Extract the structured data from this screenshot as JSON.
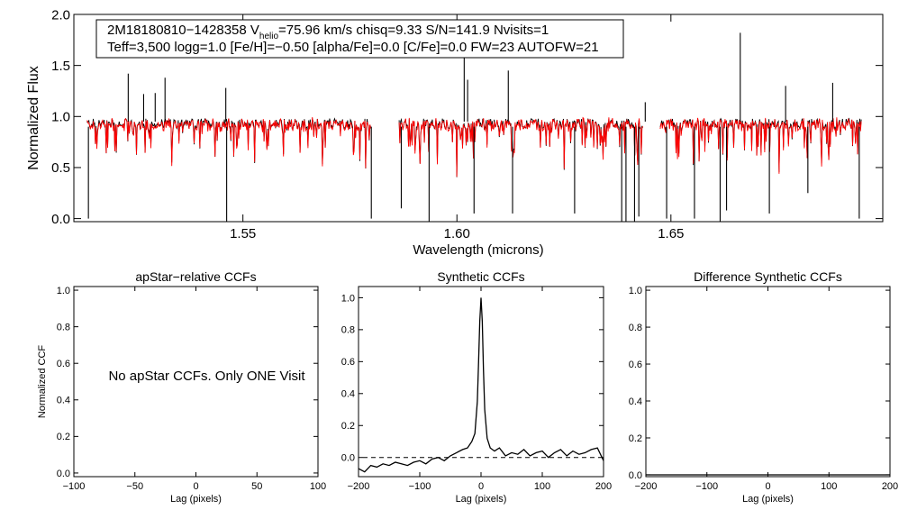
{
  "chart_data": [
    {
      "id": "spectrum",
      "type": "line",
      "xlabel": "Wavelength (microns)",
      "ylabel": "Normalized Flux",
      "xlim": [
        1.5105,
        1.6995
      ],
      "ylim": [
        -0.03,
        2.0
      ],
      "xticks": [
        1.55,
        1.6,
        1.65
      ],
      "xtick_labels": [
        "1.55",
        "1.60",
        "1.65"
      ],
      "yticks": [
        0.0,
        0.5,
        1.0,
        1.5,
        2.0
      ],
      "ytick_labels": [
        "0.0",
        "0.5",
        "1.0",
        "1.5",
        "2.0"
      ],
      "info_box": {
        "line1": {
          "star_id": "2M18180810−1428358",
          "v_sym": "V",
          "v_sub": "helio",
          "rest": "=75.96 km/s  chisq=9.33  S/N=141.9  Nvisits=1"
        },
        "line2": "Teff=3,500 logg=1.0 [Fe/H]=−0.50 [alpha/Fe]=0.0 [C/Fe]=0.0 FW=23 AUTOFW=21"
      },
      "segments": [
        [
          1.5135,
          1.58
        ],
        [
          1.5865,
          1.6435
        ],
        [
          1.6475,
          1.6945
        ]
      ],
      "series": [
        {
          "name": "observed",
          "color": "#000000"
        },
        {
          "name": "model",
          "color": "#ff0000"
        }
      ],
      "spikes": [
        {
          "x": 1.5232,
          "y": 1.42
        },
        {
          "x": 1.5268,
          "y": 1.22
        },
        {
          "x": 1.5295,
          "y": 1.23
        },
        {
          "x": 1.5318,
          "y": 1.38
        },
        {
          "x": 1.546,
          "y": 1.28
        },
        {
          "x": 1.6017,
          "y": 1.6
        },
        {
          "x": 1.6025,
          "y": 1.36
        },
        {
          "x": 1.612,
          "y": 1.45
        },
        {
          "x": 1.644,
          "y": 1.14
        },
        {
          "x": 1.6662,
          "y": 1.82
        },
        {
          "x": 1.6768,
          "y": 1.3
        },
        {
          "x": 1.6878,
          "y": 1.33
        }
      ],
      "deep_lines": [
        {
          "x": 1.5139,
          "y": 0.0
        },
        {
          "x": 1.5462,
          "y": -0.03
        },
        {
          "x": 1.58,
          "y": 0.0
        },
        {
          "x": 1.587,
          "y": 0.1
        },
        {
          "x": 1.5935,
          "y": -0.03
        },
        {
          "x": 1.604,
          "y": 0.05
        },
        {
          "x": 1.613,
          "y": 0.05
        },
        {
          "x": 1.6275,
          "y": 0.05
        },
        {
          "x": 1.6385,
          "y": -0.03
        },
        {
          "x": 1.6395,
          "y": -0.03
        },
        {
          "x": 1.6415,
          "y": -0.03
        },
        {
          "x": 1.6425,
          "y": 0.02
        },
        {
          "x": 1.649,
          "y": 0.0
        },
        {
          "x": 1.6555,
          "y": 0.0
        },
        {
          "x": 1.6615,
          "y": -0.03
        },
        {
          "x": 1.663,
          "y": 0.08
        },
        {
          "x": 1.673,
          "y": 0.05
        },
        {
          "x": 1.682,
          "y": 0.25
        },
        {
          "x": 1.694,
          "y": 0.0
        }
      ]
    },
    {
      "id": "apstar",
      "type": "line",
      "title": "apStar−relative CCFs",
      "xlabel": "Lag (pixels)",
      "ylabel": "Normalized CCF",
      "xlim": [
        -100,
        100
      ],
      "ylim": [
        -0.02,
        1.02
      ],
      "xticks": [
        -100,
        -50,
        0,
        50,
        100
      ],
      "xtick_labels": [
        "−100",
        "−50",
        "0",
        "50",
        "100"
      ],
      "yticks": [
        0.0,
        0.2,
        0.4,
        0.6,
        0.8,
        1.0
      ],
      "ytick_labels": [
        "0.0",
        "0.2",
        "0.4",
        "0.6",
        "0.8",
        "1.0"
      ],
      "annotation": "No apStar CCFs.  Only ONE Visit"
    },
    {
      "id": "synthetic",
      "type": "line",
      "title": "Synthetic CCFs",
      "xlabel": "Lag (pixels)",
      "ylabel": "",
      "xlim": [
        -200,
        200
      ],
      "ylim": [
        -0.12,
        1.07
      ],
      "xticks": [
        -200,
        -100,
        0,
        100,
        200
      ],
      "xtick_labels": [
        "−200",
        "−100",
        "0",
        "100",
        "200"
      ],
      "yticks": [
        0.0,
        0.2,
        0.4,
        0.6,
        0.8,
        1.0
      ],
      "ytick_labels": [
        "0.0",
        "0.2",
        "0.4",
        "0.6",
        "0.8",
        "1.0"
      ],
      "zero_line": 0.0,
      "series": [
        {
          "name": "ccf",
          "x": [
            -200,
            -190,
            -180,
            -170,
            -160,
            -150,
            -140,
            -130,
            -120,
            -110,
            -100,
            -90,
            -80,
            -70,
            -60,
            -50,
            -40,
            -30,
            -22,
            -15,
            -10,
            -6,
            -4,
            -2,
            0,
            2,
            4,
            6,
            10,
            15,
            22,
            30,
            40,
            50,
            60,
            70,
            80,
            90,
            100,
            110,
            120,
            130,
            140,
            150,
            160,
            170,
            180,
            190,
            200
          ],
          "y": [
            -0.07,
            -0.09,
            -0.05,
            -0.06,
            -0.04,
            -0.05,
            -0.03,
            -0.04,
            -0.05,
            -0.03,
            -0.02,
            -0.04,
            -0.01,
            0.0,
            -0.02,
            0.01,
            0.03,
            0.05,
            0.06,
            0.1,
            0.15,
            0.35,
            0.6,
            0.85,
            1.0,
            0.85,
            0.55,
            0.3,
            0.12,
            0.06,
            0.04,
            0.06,
            0.01,
            0.03,
            0.02,
            0.05,
            0.01,
            0.03,
            0.04,
            0.0,
            0.03,
            0.05,
            0.01,
            0.04,
            0.02,
            0.03,
            0.05,
            0.06,
            -0.02
          ]
        }
      ]
    },
    {
      "id": "difference",
      "type": "line",
      "title": "Difference Synthetic CCFs",
      "xlabel": "Lag (pixels)",
      "ylabel": "",
      "xlim": [
        -200,
        200
      ],
      "ylim": [
        -0.01,
        1.02
      ],
      "xticks": [
        -200,
        -100,
        0,
        100,
        200
      ],
      "xtick_labels": [
        "−200",
        "−100",
        "0",
        "100",
        "200"
      ],
      "yticks": [
        0.0,
        0.2,
        0.4,
        0.6,
        0.8,
        1.0
      ],
      "ytick_labels": [
        "0.0",
        "0.2",
        "0.4",
        "0.6",
        "0.8",
        "1.0"
      ],
      "series": [
        {
          "name": "difference",
          "x": [
            -200,
            200
          ],
          "y": [
            0.0,
            0.0
          ]
        }
      ]
    }
  ]
}
